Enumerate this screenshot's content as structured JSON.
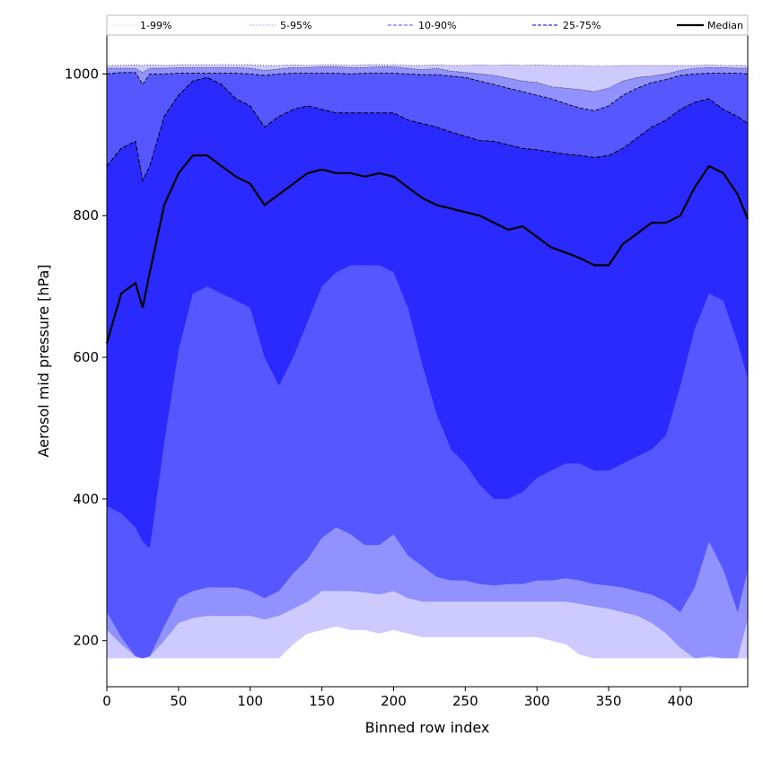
{
  "chart_data": {
    "type": "area",
    "title": "",
    "xlabel": "Binned row index",
    "ylabel": "Aerosol mid pressure [hPa]",
    "xlim": [
      0,
      447
    ],
    "ylim": [
      135,
      1055
    ],
    "x_ticks": [
      0,
      50,
      100,
      150,
      200,
      250,
      300,
      350,
      400
    ],
    "y_ticks": [
      200,
      400,
      600,
      800,
      1000
    ],
    "grid": false,
    "legend": {
      "placement": "top-outside",
      "entries": [
        {
          "label": "1-99%",
          "style": "dotted",
          "color": "#d0d0ff"
        },
        {
          "label": "5-95%",
          "style": "dotted",
          "color": "#9090ff"
        },
        {
          "label": "10-90%",
          "style": "dashed",
          "color": "#8c8cff"
        },
        {
          "label": "25-75%",
          "style": "dashed",
          "color": "#5050ff"
        },
        {
          "label": "Median",
          "style": "solid",
          "color": "#000000"
        }
      ]
    },
    "colors": {
      "band_1_99": "#cccaff",
      "band_5_95": "#9292ff",
      "band_10_90": "#5757ff",
      "band_25_75": "#2a2aff",
      "median": "#000000"
    },
    "x": [
      0,
      10,
      20,
      25,
      30,
      40,
      50,
      60,
      70,
      80,
      90,
      100,
      110,
      120,
      130,
      140,
      150,
      160,
      170,
      180,
      190,
      200,
      210,
      220,
      230,
      240,
      250,
      260,
      270,
      280,
      290,
      300,
      310,
      320,
      330,
      340,
      350,
      360,
      370,
      380,
      390,
      400,
      410,
      420,
      430,
      440,
      447
    ],
    "series": [
      {
        "name": "1-99%",
        "lower": [
          175,
          175,
          175,
          175,
          175,
          175,
          175,
          175,
          175,
          175,
          175,
          175,
          175,
          175,
          195,
          210,
          215,
          220,
          215,
          215,
          210,
          215,
          210,
          205,
          205,
          205,
          205,
          205,
          205,
          205,
          205,
          205,
          200,
          195,
          180,
          175,
          175,
          175,
          175,
          175,
          175,
          175,
          175,
          175,
          175,
          175,
          175
        ],
        "upper": [
          1012,
          1012,
          1013,
          1012,
          1013,
          1012,
          1013,
          1013,
          1013,
          1013,
          1013,
          1013,
          1012,
          1012,
          1013,
          1012,
          1013,
          1013,
          1012,
          1013,
          1013,
          1013,
          1012,
          1012,
          1013,
          1012,
          1012,
          1013,
          1012,
          1013,
          1012,
          1013,
          1012,
          1012,
          1012,
          1011,
          1011,
          1012,
          1012,
          1012,
          1012,
          1012,
          1012,
          1013,
          1012,
          1012,
          1012
        ]
      },
      {
        "name": "5-95%",
        "lower": [
          215,
          195,
          178,
          175,
          178,
          200,
          225,
          232,
          235,
          235,
          235,
          235,
          230,
          235,
          245,
          255,
          270,
          270,
          270,
          268,
          265,
          270,
          260,
          255,
          255,
          255,
          255,
          255,
          255,
          255,
          255,
          255,
          255,
          255,
          252,
          248,
          245,
          240,
          235,
          225,
          210,
          190,
          175,
          178,
          175,
          175,
          230
        ],
        "upper": [
          1008,
          1008,
          1008,
          1002,
          1008,
          1008,
          1009,
          1009,
          1009,
          1009,
          1009,
          1008,
          1005,
          1007,
          1009,
          1009,
          1010,
          1010,
          1009,
          1009,
          1010,
          1010,
          1008,
          1006,
          1008,
          1004,
          1002,
          1000,
          998,
          994,
          990,
          988,
          982,
          980,
          978,
          975,
          980,
          990,
          995,
          997,
          1000,
          1005,
          1008,
          1009,
          1009,
          1008,
          1008
        ]
      },
      {
        "name": "10-90%",
        "lower": [
          240,
          205,
          178,
          175,
          178,
          220,
          260,
          270,
          275,
          275,
          275,
          270,
          260,
          270,
          295,
          315,
          345,
          360,
          350,
          335,
          335,
          350,
          320,
          305,
          290,
          285,
          285,
          280,
          278,
          280,
          280,
          285,
          285,
          288,
          285,
          280,
          278,
          275,
          270,
          265,
          255,
          240,
          275,
          340,
          300,
          240,
          300
        ]
      },
      {
        "name": "25-75%",
        "lower": [
          390,
          380,
          360,
          340,
          330,
          480,
          610,
          690,
          700,
          690,
          680,
          670,
          600,
          560,
          600,
          650,
          700,
          720,
          730,
          730,
          730,
          720,
          670,
          590,
          520,
          470,
          450,
          420,
          400,
          400,
          410,
          430,
          440,
          450,
          450,
          440,
          440,
          450,
          460,
          470,
          490,
          560,
          640,
          690,
          680,
          620,
          570
        ],
        "upper": [
          1000,
          1002,
          1002,
          985,
          1000,
          1000,
          1001,
          1001,
          1001,
          1001,
          1001,
          1000,
          998,
          1000,
          1001,
          1001,
          1001,
          1001,
          1000,
          1001,
          1001,
          1001,
          1000,
          999,
          999,
          997,
          995,
          990,
          985,
          980,
          975,
          970,
          965,
          958,
          952,
          948,
          955,
          970,
          980,
          988,
          992,
          998,
          1000,
          1001,
          1001,
          1001,
          1000
        ],
        "upper_75": [
          870,
          895,
          905,
          850,
          870,
          940,
          970,
          990,
          995,
          985,
          965,
          955,
          925,
          940,
          950,
          955,
          950,
          945,
          945,
          945,
          945,
          945,
          935,
          930,
          925,
          918,
          912,
          906,
          905,
          900,
          895,
          893,
          890,
          887,
          885,
          882,
          885,
          895,
          910,
          925,
          935,
          950,
          960,
          965,
          950,
          940,
          930
        ]
      },
      {
        "name": "Median",
        "values": [
          620,
          690,
          705,
          670,
          720,
          815,
          860,
          885,
          885,
          870,
          855,
          845,
          815,
          830,
          845,
          860,
          865,
          860,
          860,
          855,
          860,
          855,
          840,
          825,
          815,
          810,
          805,
          800,
          790,
          780,
          785,
          770,
          755,
          748,
          740,
          730,
          730,
          760,
          775,
          790,
          790,
          800,
          840,
          870,
          860,
          830,
          795
        ]
      }
    ]
  }
}
